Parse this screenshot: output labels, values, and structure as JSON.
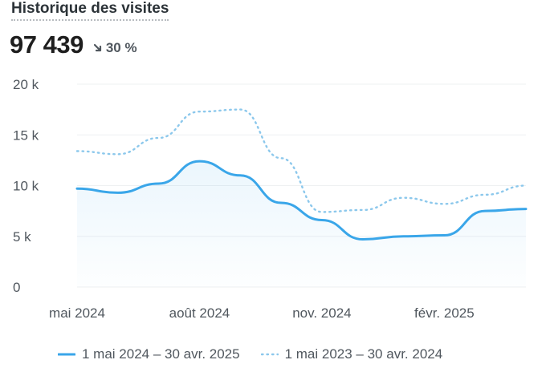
{
  "header": {
    "title": "Historique des visites",
    "total": "97 439",
    "change": "30 %",
    "change_direction": "down"
  },
  "chart_data": {
    "type": "line",
    "ylim": [
      0,
      20000
    ],
    "yticks": [
      0,
      5000,
      10000,
      15000,
      20000
    ],
    "ytick_labels": [
      "0",
      "5 k",
      "10 k",
      "15 k",
      "20 k"
    ],
    "xtick_labels": [
      "mai 2024",
      "août 2024",
      "nov. 2024",
      "févr. 2025"
    ],
    "xtick_index": [
      0,
      3,
      6,
      9
    ],
    "grid": true,
    "legend_position": "bottom",
    "series": [
      {
        "name": "1 mai 2024 – 30 avr. 2025",
        "color": "#3aa6e9",
        "style": "solid",
        "values": [
          9700,
          9300,
          10200,
          12400,
          11000,
          8300,
          6600,
          4700,
          5000,
          5100,
          7500,
          7700
        ]
      },
      {
        "name": "1 mai 2023 – 30 avr. 2024",
        "color": "#8cc8ec",
        "style": "dotted",
        "values": [
          13400,
          13100,
          14700,
          17300,
          17500,
          12700,
          7400,
          7600,
          8800,
          8200,
          9100,
          10000
        ]
      }
    ]
  }
}
